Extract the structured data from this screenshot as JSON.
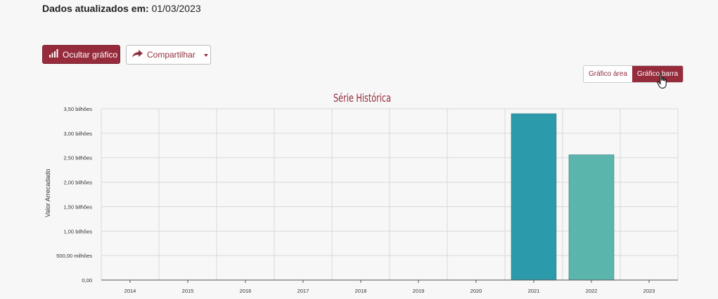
{
  "header": {
    "updated_label": "Dados atualizados em:",
    "updated_date": "01/03/2023"
  },
  "toolbar": {
    "hide_chart_label": "Ocultar gráfico",
    "share_label": "Compartilhar"
  },
  "chart_toggle": {
    "area_label": "Gráfico área",
    "bar_label": "Gráfico barra",
    "selected": "Gráfico barra"
  },
  "colors": {
    "accent": "#962b3c",
    "bar_2021": "#2b9aab",
    "bar_2022": "#5ab5ad"
  },
  "chart_data": {
    "type": "bar",
    "title": "Série Histórica",
    "xlabel": "",
    "ylabel": "Valor Arrecadado",
    "categories": [
      "2014",
      "2015",
      "2016",
      "2017",
      "2018",
      "2019",
      "2020",
      "2021",
      "2022",
      "2023"
    ],
    "values": [
      null,
      null,
      null,
      null,
      null,
      null,
      null,
      3.4,
      2.56,
      null
    ],
    "ylim": [
      0,
      3.5
    ],
    "y_ticks": [
      0,
      0.5,
      1.0,
      1.5,
      2.0,
      2.5,
      3.0,
      3.5
    ],
    "y_tick_labels": [
      "0,00",
      "500,00 milhões",
      "1,00 bilhões",
      "1,50 bilhões",
      "2,00 bilhões",
      "2,50 bilhões",
      "3,00 bilhões",
      "3,50 bilhões"
    ],
    "unit": "bilhões",
    "grid": true
  }
}
